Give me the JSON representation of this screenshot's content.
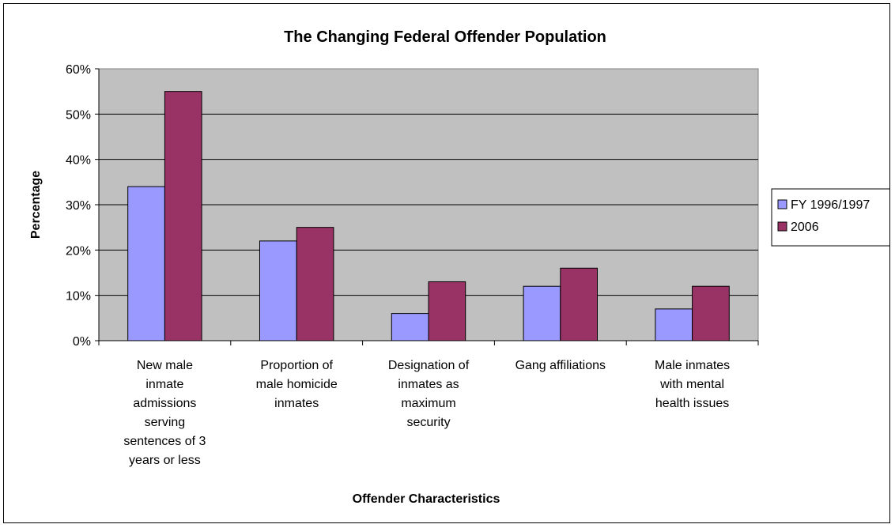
{
  "chart_data": {
    "type": "bar",
    "title": "The Changing Federal Offender Population",
    "xlabel": "Offender Characteristics",
    "ylabel": "Percentage",
    "ylim": [
      0,
      60
    ],
    "ytick_step": 10,
    "ytick_suffix": "%",
    "grid": true,
    "legend_position": "right",
    "categories": [
      [
        "New male",
        "inmate",
        "admissions",
        "serving",
        "sentences of 3",
        "years or less"
      ],
      [
        "Proportion of",
        "male homicide",
        "inmates"
      ],
      [
        "Designation of",
        "inmates as",
        "maximum",
        "security"
      ],
      [
        "Gang affiliations"
      ],
      [
        "Male inmates",
        "with mental",
        "health issues"
      ]
    ],
    "series": [
      {
        "name": "FY 1996/1997",
        "color": "#9999ff",
        "values": [
          34,
          22,
          6,
          12,
          7
        ]
      },
      {
        "name": "2006",
        "color": "#993366",
        "values": [
          55,
          25,
          13,
          16,
          12
        ]
      }
    ],
    "plot_background": "#c0c0c0"
  }
}
